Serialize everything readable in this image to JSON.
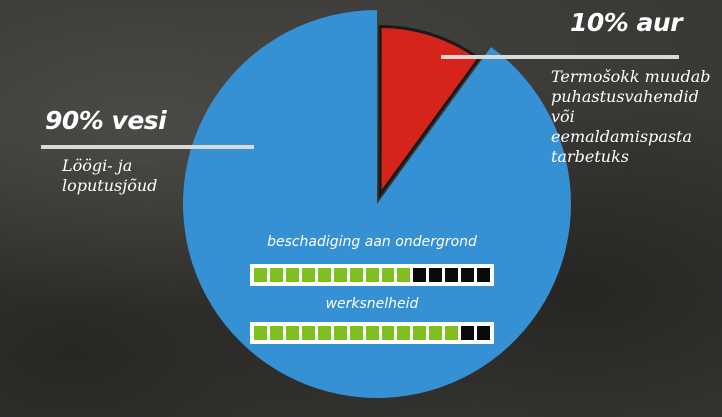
{
  "chart_data": {
    "type": "pie",
    "slices": [
      {
        "label": "90% vesi",
        "value": 90,
        "color": "#3591d4"
      },
      {
        "label": "10% aur",
        "value": 10,
        "color": "#d7241b"
      }
    ],
    "title": ""
  },
  "callouts": {
    "steam": {
      "title": "10% aur",
      "description": "Termošokk muudab puhastusvahendid või eemaldamispasta tarbetuks"
    },
    "water": {
      "title": "90% vesi",
      "description": "Löögi- ja loputusjõud"
    }
  },
  "meters": [
    {
      "label": "beschadiging aan ondergrond",
      "total_segments": 15,
      "filled_segments": 10,
      "fill_color": "#7fbf1f"
    },
    {
      "label": "werksnelheid",
      "total_segments": 15,
      "filled_segments": 13,
      "fill_color": "#7fbf1f"
    }
  ]
}
